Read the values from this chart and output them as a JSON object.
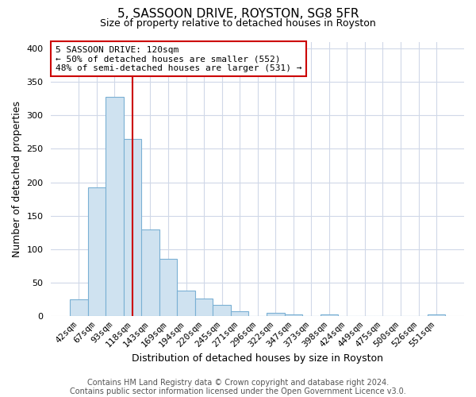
{
  "title": "5, SASSOON DRIVE, ROYSTON, SG8 5FR",
  "subtitle": "Size of property relative to detached houses in Royston",
  "xlabel": "Distribution of detached houses by size in Royston",
  "ylabel": "Number of detached properties",
  "bar_labels": [
    "42sqm",
    "67sqm",
    "93sqm",
    "118sqm",
    "143sqm",
    "169sqm",
    "194sqm",
    "220sqm",
    "245sqm",
    "271sqm",
    "296sqm",
    "322sqm",
    "347sqm",
    "373sqm",
    "398sqm",
    "424sqm",
    "449sqm",
    "475sqm",
    "500sqm",
    "526sqm",
    "551sqm"
  ],
  "bar_heights": [
    25,
    193,
    328,
    265,
    130,
    86,
    38,
    26,
    17,
    8,
    0,
    5,
    3,
    0,
    3,
    0,
    0,
    0,
    0,
    0,
    3
  ],
  "bar_color": "#cfe2f0",
  "bar_edge_color": "#7ab0d4",
  "vline_x_idx": 3,
  "vline_color": "#cc0000",
  "annotation_line1": "5 SASSOON DRIVE: 120sqm",
  "annotation_line2": "← 50% of detached houses are smaller (552)",
  "annotation_line3": "48% of semi-detached houses are larger (531) →",
  "annotation_box_color": "#ffffff",
  "annotation_box_edge": "#cc0000",
  "ylim": [
    0,
    410
  ],
  "yticks": [
    0,
    50,
    100,
    150,
    200,
    250,
    300,
    350,
    400
  ],
  "footer1": "Contains HM Land Registry data © Crown copyright and database right 2024.",
  "footer2": "Contains public sector information licensed under the Open Government Licence v3.0.",
  "bg_color": "#ffffff",
  "grid_color": "#d0d8e8",
  "title_fontsize": 11,
  "subtitle_fontsize": 9,
  "ylabel_fontsize": 9,
  "xlabel_fontsize": 9,
  "tick_fontsize": 8,
  "footer_fontsize": 7
}
